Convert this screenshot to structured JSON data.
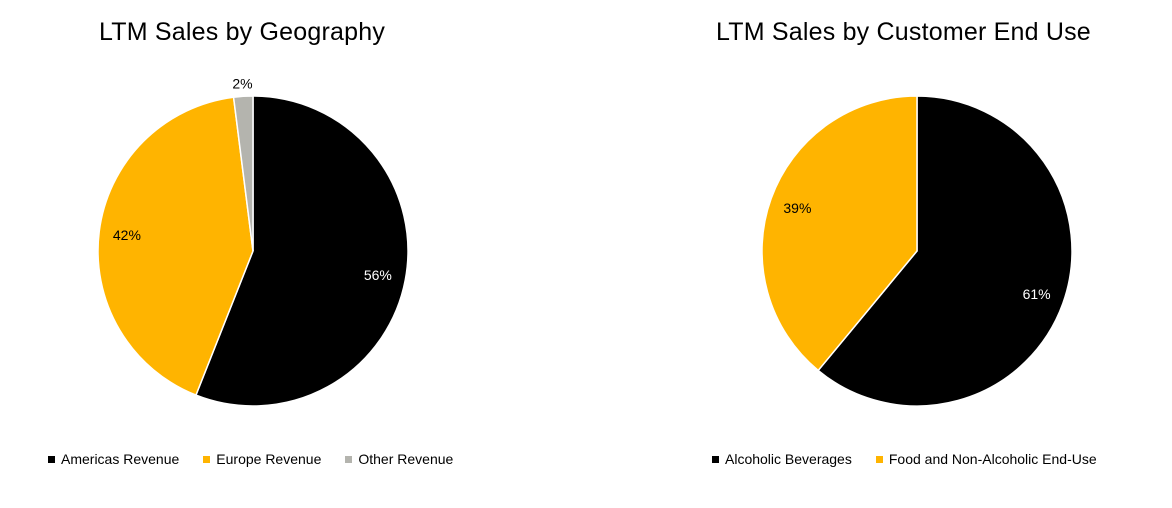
{
  "colors": {
    "black": "#000000",
    "orange": "#FFB400",
    "gray": "#B4B4AE",
    "white": "#FFFFFF"
  },
  "chart_data": [
    {
      "type": "pie",
      "title": "LTM Sales by Geography",
      "start_angle_deg": 0,
      "direction": "clockwise",
      "legend_position": "bottom",
      "slices": [
        {
          "label": "Americas Revenue",
          "value": 56,
          "display": "56%",
          "color": "#000000",
          "label_color": "#FFFFFF",
          "label_outside": false
        },
        {
          "label": "Europe Revenue",
          "value": 42,
          "display": "42%",
          "color": "#FFB400",
          "label_color": "#000000",
          "label_outside": false
        },
        {
          "label": "Other Revenue",
          "value": 2,
          "display": "2%",
          "color": "#B4B4AE",
          "label_color": "#000000",
          "label_outside": true
        }
      ]
    },
    {
      "type": "pie",
      "title": "LTM Sales by Customer End Use",
      "start_angle_deg": 0,
      "direction": "clockwise",
      "legend_position": "bottom",
      "slices": [
        {
          "label": "Alcoholic Beverages",
          "value": 61,
          "display": "61%",
          "color": "#000000",
          "label_color": "#FFFFFF",
          "label_outside": false
        },
        {
          "label": "Food and Non-Alcoholic End-Use",
          "value": 39,
          "display": "39%",
          "color": "#FFB400",
          "label_color": "#000000",
          "label_outside": false
        }
      ]
    }
  ]
}
